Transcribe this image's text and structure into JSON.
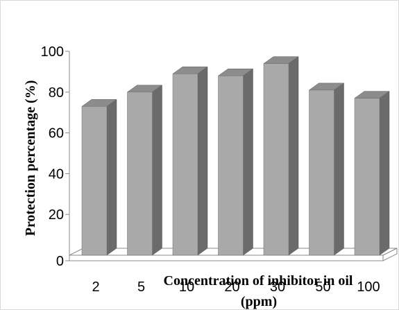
{
  "chart_data": {
    "type": "bar",
    "style": "3d-column",
    "categories": [
      "2",
      "5",
      "10",
      "20",
      "30",
      "50",
      "100"
    ],
    "values": [
      73,
      80,
      89,
      88,
      94,
      81,
      77
    ],
    "ylim": [
      0,
      100
    ],
    "yticks": [
      "0",
      "20",
      "40",
      "60",
      "80",
      "100"
    ],
    "xlabel_lines": [
      "Concentration of inhibitor in oil",
      "(ppm)"
    ],
    "ylabel": "Protection percentage (%)",
    "grid": false,
    "legend": "none",
    "colors": {
      "bar_front": "#a9a9a9",
      "bar_side": "#6b6b6b",
      "bar_top": "#8c8c8c",
      "floor": "#ffffff"
    }
  }
}
